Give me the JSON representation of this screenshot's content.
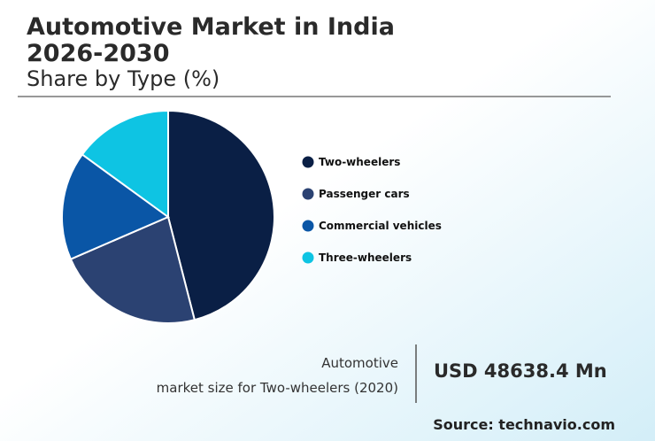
{
  "chart_data": {
    "type": "pie",
    "title": [
      "Automotive Market in India",
      "2026-2030"
    ],
    "subtitle": "Share by Type (%)",
    "categories": [
      "Two-wheelers",
      "Passenger cars",
      "Commercial vehicles",
      "Three-wheelers"
    ],
    "values": [
      46,
      22.5,
      16.5,
      15
    ],
    "colors": [
      "#0a1f45",
      "#2b4272",
      "#0a56a6",
      "#0ec4e3"
    ]
  },
  "market_size": {
    "label": [
      "Automotive",
      "market size for Two-wheelers (2020)"
    ],
    "value": "USD 48638.4 Mn"
  },
  "source": "Source: technavio.com"
}
